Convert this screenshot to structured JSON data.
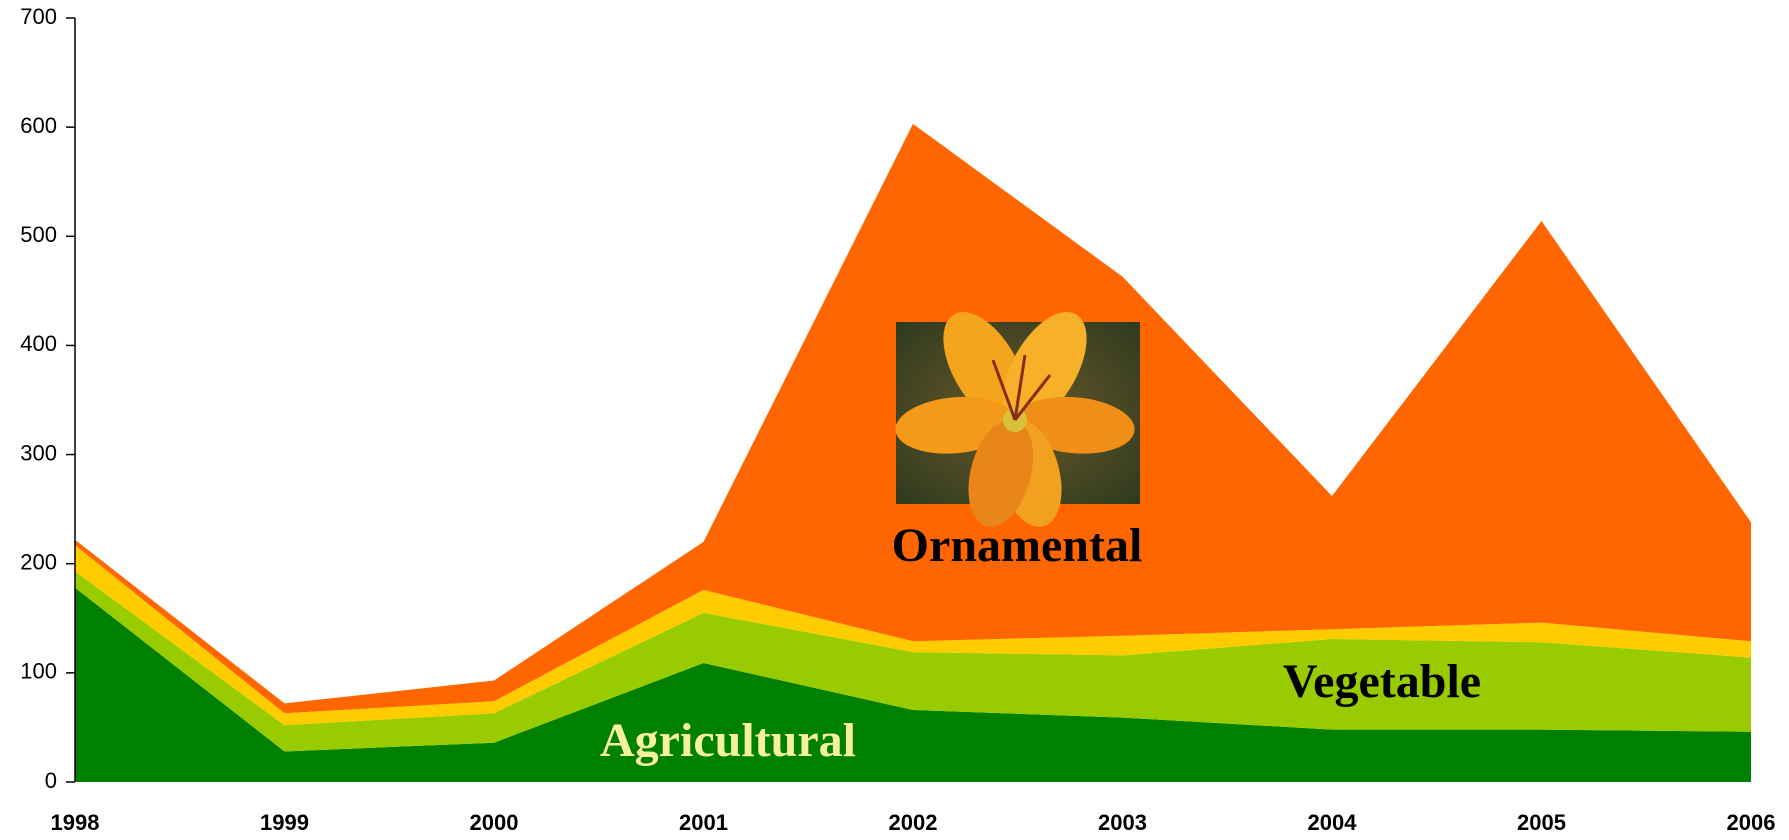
{
  "chart_data": {
    "type": "stacked_area",
    "categories": [
      "1998",
      "1999",
      "2000",
      "2001",
      "2002",
      "2003",
      "2004",
      "2005",
      "2006"
    ],
    "series": [
      {
        "name": "Agricultural",
        "color": "#008000",
        "values": [
          178,
          28,
          36,
          109,
          66,
          59,
          48,
          48,
          46
        ]
      },
      {
        "name": "Vegetable",
        "color": "#99cc00",
        "values": [
          15,
          24,
          27,
          46,
          53,
          57,
          83,
          80,
          68
        ]
      },
      {
        "color": "#ffcc00",
        "values": [
          24,
          11,
          11,
          21,
          10,
          18,
          9,
          18,
          15
        ]
      },
      {
        "name": "Ornamental",
        "color": "#ff6600",
        "values": [
          5,
          9,
          19,
          44,
          474,
          329,
          122,
          368,
          109
        ]
      }
    ],
    "ylim": [
      0,
      700
    ],
    "yticks": [
      0,
      100,
      200,
      300,
      400,
      500,
      600,
      700
    ]
  }
}
